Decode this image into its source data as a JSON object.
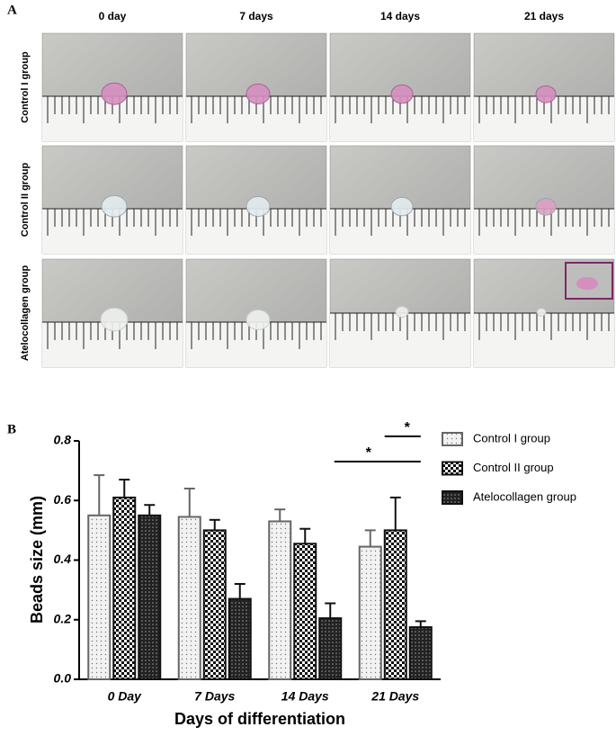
{
  "panel_a": {
    "label": "A",
    "columns": [
      "0 day",
      "7 days",
      "14 days",
      "21 days"
    ],
    "rows": [
      "Control I group",
      "Control II group",
      "Atelocollagen group"
    ]
  },
  "chart_data": {
    "type": "bar",
    "panel_label": "B",
    "y_label": "Beads size (mm)",
    "x_label": "Days of differentiation",
    "categories": [
      "0 Day",
      "7 Days",
      "14 Days",
      "21 Days"
    ],
    "series": [
      {
        "name": "Control I group",
        "color": "#666666",
        "pattern": "dots",
        "values": [
          0.55,
          0.545,
          0.53,
          0.445
        ],
        "errors": [
          0.135,
          0.095,
          0.04,
          0.055
        ]
      },
      {
        "name": "Control II group",
        "color": "#111111",
        "pattern": "checker",
        "values": [
          0.61,
          0.5,
          0.455,
          0.5
        ],
        "errors": [
          0.06,
          0.035,
          0.05,
          0.11
        ]
      },
      {
        "name": "Atelocollagen group",
        "color": "#111111",
        "pattern": "dense",
        "values": [
          0.55,
          0.27,
          0.205,
          0.175
        ],
        "errors": [
          0.035,
          0.05,
          0.05,
          0.02
        ]
      }
    ],
    "ylim": [
      0,
      0.8
    ],
    "yticks": [
      {
        "value": 0,
        "label": "0.0"
      },
      0.2,
      0.4,
      0.6,
      0.8
    ],
    "significance": [
      {
        "label": "*",
        "category": "21 Days",
        "between": [
          "Control II group",
          "Atelocollagen group"
        ]
      },
      {
        "label": "*",
        "category": "21 Days",
        "between": [
          "Control I group",
          "Atelocollagen group"
        ]
      }
    ],
    "legend": "right"
  }
}
